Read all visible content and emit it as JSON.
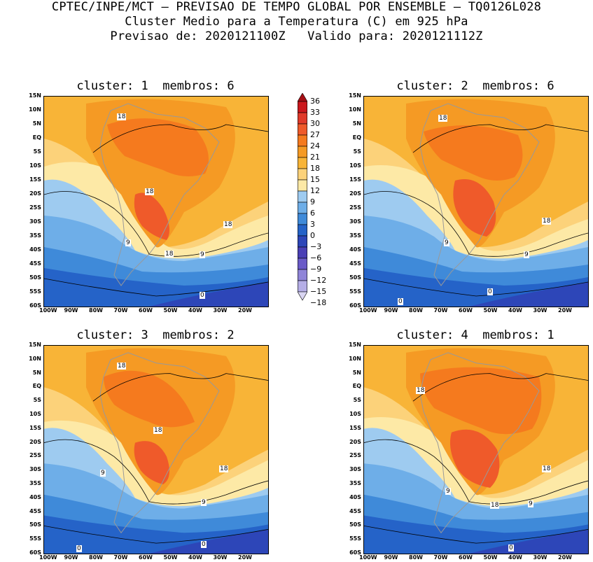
{
  "header": {
    "line1": "CPTEC/INPE/MCT — PREVISAO DE TEMPO GLOBAL POR ENSEMBLE — TQ0126L028",
    "line2": "Cluster Medio para a Temperatura (C) em 925 hPa",
    "line3": "Previsao de: 2020121100Z   Valido para: 2020121112Z"
  },
  "panels": [
    {
      "title": "cluster: 1  membros: 6",
      "labels": [
        "18",
        "18",
        "18",
        "9",
        "18",
        "9",
        "0"
      ]
    },
    {
      "title": "cluster: 2  membros: 6",
      "labels": [
        "18",
        "18",
        "9",
        "9",
        "0",
        "0"
      ]
    },
    {
      "title": "cluster: 3  membros: 2",
      "labels": [
        "18",
        "18",
        "18",
        "9",
        "9",
        "0",
        "0"
      ]
    },
    {
      "title": "cluster: 4  membros: 1",
      "labels": [
        "18",
        "18",
        "9",
        "18",
        "9",
        "0"
      ]
    }
  ],
  "lat_ticks": [
    "15N",
    "10N",
    "5N",
    "EQ",
    "5S",
    "10S",
    "15S",
    "20S",
    "25S",
    "30S",
    "35S",
    "40S",
    "45S",
    "50S",
    "55S",
    "60S"
  ],
  "lon_ticks": [
    "100W",
    "90W",
    "80W",
    "70W",
    "60W",
    "50W",
    "40W",
    "30W",
    "20W"
  ],
  "colorbar": {
    "labels": [
      "36",
      "33",
      "30",
      "27",
      "24",
      "21",
      "18",
      "15",
      "12",
      "9",
      "6",
      "3",
      "0",
      "−3",
      "−6",
      "−9",
      "−12",
      "−15",
      "−18"
    ],
    "colors": [
      "#a50f15",
      "#cb181d",
      "#e03a2a",
      "#ef5a2a",
      "#f57a1e",
      "#f59a24",
      "#f8b437",
      "#fcd27a",
      "#fde9a6",
      "#9ecbf0",
      "#6eaee8",
      "#3f8ad9",
      "#2563c8",
      "#2d46b8",
      "#4a3fb5",
      "#6a5bc8",
      "#8f84d8",
      "#b5aee6",
      "#d9d5f2"
    ]
  }
}
